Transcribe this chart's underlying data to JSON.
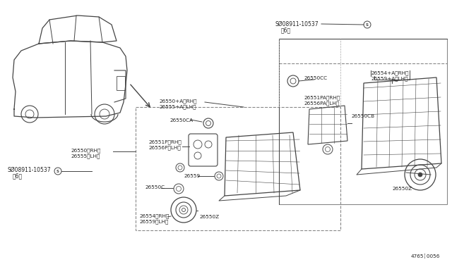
{
  "bg_color": "#ffffff",
  "fig_width": 6.4,
  "fig_height": 3.72,
  "dpi": 100,
  "diagram_number": "4765┆0056",
  "labels": {
    "screw_top": "SØ08911-10537",
    "screw_top2": "（6）",
    "screw_bot": "SØ08911-10537",
    "screw_bot2": "（6）",
    "label_rh_lh_top1": "26550+A（RH）",
    "label_rh_lh_top2": "26555+A（LH）",
    "label_pa1": "26551PA（RH）",
    "label_pa2": "26556PA（LH）",
    "label_cb": "26550CB",
    "label_cc": "26550CC",
    "label_rh_lh_far1": "26554+A（RH）",
    "label_rh_lh_far2": "26559+A（LH）",
    "label_z_far": "26550Z",
    "label_ca": "26550CA",
    "label_p1": "26551P（RH）",
    "label_p2": "26556P（LH）",
    "label_rh_lh_left1": "26550（RH）",
    "label_rh_lh_left2": "26555（LH）",
    "label_c": "26550C",
    "label_559": "26559",
    "label_554_5591": "26554（RH）",
    "label_554_5592": "26559（LH）",
    "label_z_inner": "26550Z"
  },
  "text_color": "#222222",
  "line_color": "#444444",
  "diagram_num_text": "4765┆0056"
}
